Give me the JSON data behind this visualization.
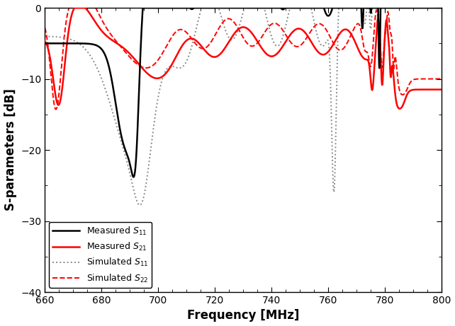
{
  "title": "",
  "xlabel": "Frequency [MHz]",
  "ylabel": "S-parameters [dB]",
  "xlim": [
    660,
    800
  ],
  "ylim": [
    -40,
    0
  ],
  "xticks": [
    660,
    680,
    700,
    720,
    740,
    760,
    780,
    800
  ],
  "yticks": [
    0,
    -10,
    -20,
    -30,
    -40
  ],
  "background_color": "#ffffff",
  "figsize": [
    6.42,
    4.61
  ],
  "dpi": 100
}
